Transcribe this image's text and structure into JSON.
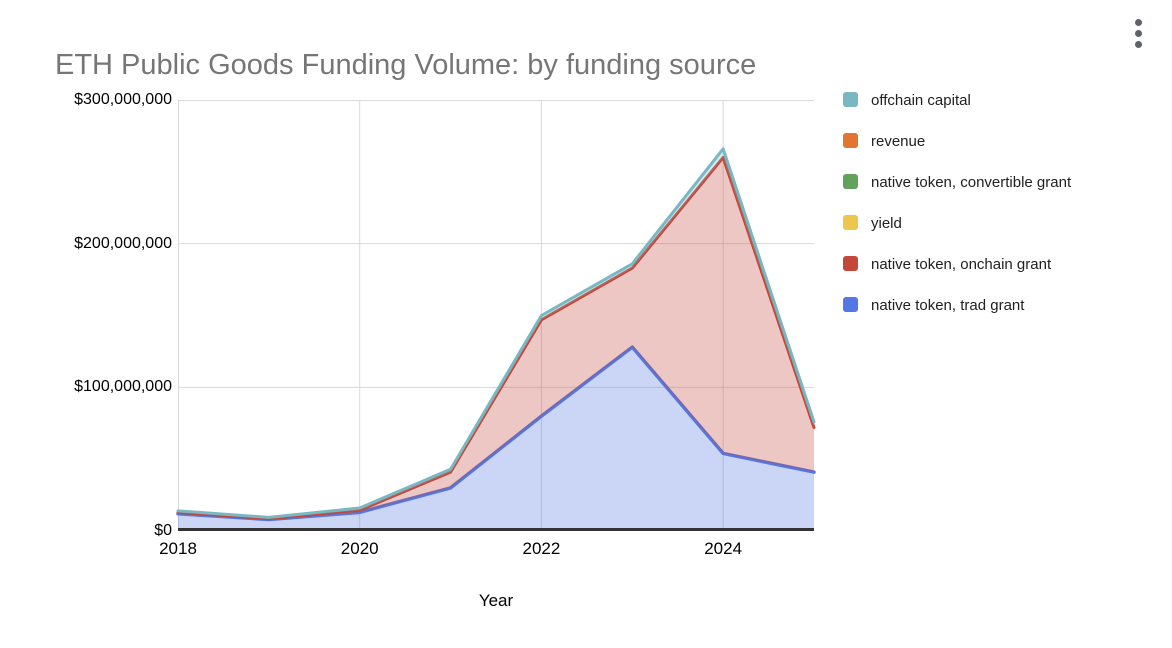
{
  "header": {
    "title": "ETH Public Goods Funding Volume: by funding source",
    "menu_icon": "kebab-menu-icon"
  },
  "colors": {
    "background": "#ffffff",
    "title_text": "#767676",
    "tick_text": "#000000",
    "legend_text": "#212121",
    "gridline": "#d9d9d9",
    "axis_line": "#333333",
    "menu_dots": "#5f6368"
  },
  "chart_data": {
    "type": "area",
    "stacked": true,
    "title": "ETH Public Goods Funding Volume: by funding source",
    "xlabel": "Year",
    "ylabel": "",
    "legend_position": "right",
    "grid": true,
    "fill_opacity": 0.3,
    "x": [
      2018,
      2019,
      2020,
      2021,
      2022,
      2023,
      2024,
      2025
    ],
    "x_ticks": [
      {
        "value": 2018,
        "label": "2018"
      },
      {
        "value": 2020,
        "label": "2020"
      },
      {
        "value": 2022,
        "label": "2022"
      },
      {
        "value": 2024,
        "label": "2024"
      }
    ],
    "ylim_usd_millions": [
      0,
      300
    ],
    "y_ticks": [
      {
        "value_millions": 0,
        "label": "$0"
      },
      {
        "value_millions": 100,
        "label": "$100,000,000"
      },
      {
        "value_millions": 200,
        "label": "$200,000,000"
      },
      {
        "value_millions": 300,
        "label": "$300,000,000"
      }
    ],
    "series_note": "series listed bottom-to-top of stack; legend shows reverse order; values estimated from pixels, USD millions",
    "series": [
      {
        "name": "native token, trad grant",
        "color": "#5377e3",
        "line_width": 3.5,
        "values_usd_millions": [
          12,
          8,
          13,
          30,
          80,
          128,
          54,
          41
        ]
      },
      {
        "name": "native token, onchain grant",
        "color": "#c4473a",
        "line_width": 3,
        "values_usd_millions": [
          1,
          0.5,
          1.5,
          11,
          67,
          55,
          206,
          31
        ]
      },
      {
        "name": "yield",
        "color": "#efc64d",
        "line_width": 3,
        "values_usd_millions": [
          0,
          0,
          0,
          0,
          0,
          0,
          0,
          0
        ]
      },
      {
        "name": "native token, convertible grant",
        "color": "#61a35c",
        "line_width": 3,
        "values_usd_millions": [
          0,
          0,
          0,
          0,
          0,
          0,
          0,
          0
        ]
      },
      {
        "name": "revenue",
        "color": "#e0762f",
        "line_width": 3,
        "values_usd_millions": [
          0,
          0,
          0,
          0,
          0,
          0,
          0,
          0
        ]
      },
      {
        "name": "offchain capital",
        "color": "#79b8c3",
        "line_width": 3,
        "values_usd_millions": [
          1,
          1,
          1.5,
          2,
          3,
          3,
          6,
          4
        ]
      }
    ],
    "totals_usd_millions": [
      14,
      9.5,
      16,
      43,
      150,
      186,
      266,
      76
    ]
  }
}
